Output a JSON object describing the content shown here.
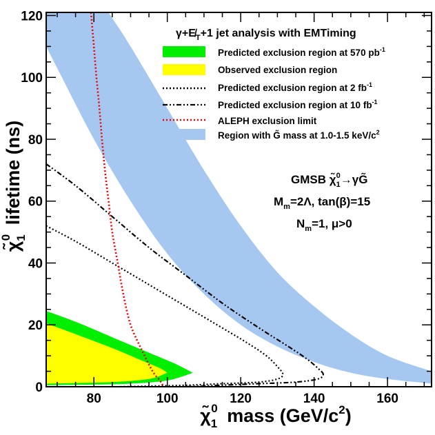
{
  "chart_data": {
    "type": "line",
    "title": "",
    "xlabel": "χ̃₁⁰ mass (GeV/c²)",
    "ylabel": "χ̃₁⁰ lifetime (ns)",
    "xlim": [
      67,
      172
    ],
    "ylim": [
      0,
      121
    ],
    "x_ticks": [
      80,
      100,
      120,
      140,
      160
    ],
    "y_ticks": [
      0,
      20,
      40,
      60,
      80,
      100,
      120
    ],
    "legend_title": "γ+E̸T+1 jet analysis with EMTiming",
    "legend_position": "top-right",
    "grid": false,
    "series": [
      {
        "name": "Predicted exclusion region at 570 pb⁻¹",
        "style": "filled-band",
        "color": "#00ee00",
        "upper": [
          [
            67,
            24.5
          ],
          [
            75,
            21
          ],
          [
            85,
            16
          ],
          [
            95,
            11
          ],
          [
            102,
            7.5
          ],
          [
            107,
            4.5
          ]
        ],
        "lower": [
          [
            107,
            4.5
          ],
          [
            100,
            2
          ],
          [
            90,
            1
          ],
          [
            80,
            0.7
          ],
          [
            67,
            0.5
          ]
        ]
      },
      {
        "name": "Observed exclusion region",
        "style": "filled-band",
        "color": "#ffff00",
        "upper": [
          [
            67,
            20.5
          ],
          [
            75,
            17
          ],
          [
            85,
            12.5
          ],
          [
            93,
            8.5
          ],
          [
            98,
            6
          ],
          [
            100,
            4.5
          ]
        ],
        "lower": [
          [
            100,
            4.5
          ],
          [
            95,
            2.5
          ],
          [
            85,
            1.5
          ],
          [
            75,
            1.2
          ],
          [
            67,
            1
          ]
        ]
      },
      {
        "name": "Predicted exclusion region at 2 fb⁻¹",
        "style": "dotted",
        "color": "#000000",
        "points": [
          [
            67,
            52
          ],
          [
            75,
            47
          ],
          [
            85,
            40
          ],
          [
            95,
            33
          ],
          [
            105,
            26
          ],
          [
            115,
            19
          ],
          [
            122,
            14
          ],
          [
            127,
            10
          ],
          [
            130,
            6.5
          ],
          [
            131.5,
            4
          ],
          [
            130,
            2.5
          ],
          [
            125,
            1.5
          ],
          [
            115,
            1
          ],
          [
            105,
            0.5
          ],
          [
            95,
            0.2
          ],
          [
            87,
            0
          ]
        ]
      },
      {
        "name": "Predicted exclusion region at 10 fb⁻¹",
        "style": "dash-dot-dot",
        "color": "#000000",
        "points": [
          [
            67,
            72
          ],
          [
            75,
            65
          ],
          [
            85,
            55
          ],
          [
            95,
            45
          ],
          [
            105,
            36
          ],
          [
            115,
            27
          ],
          [
            125,
            19
          ],
          [
            133,
            13
          ],
          [
            138,
            9
          ],
          [
            141,
            6
          ],
          [
            142.5,
            4
          ],
          [
            141,
            2.5
          ],
          [
            135,
            1.5
          ],
          [
            125,
            1
          ],
          [
            115,
            0.5
          ],
          [
            105,
            0
          ]
        ]
      },
      {
        "name": "ALEPH exclusion limit",
        "style": "dotted",
        "color": "#ee0000",
        "points": [
          [
            79.2,
            121
          ],
          [
            80,
            110
          ],
          [
            80.7,
            100
          ],
          [
            81.5,
            90
          ],
          [
            82.2,
            80
          ],
          [
            83,
            70
          ],
          [
            84,
            60
          ],
          [
            85,
            50
          ],
          [
            86.5,
            40
          ],
          [
            88,
            30
          ],
          [
            90,
            20
          ],
          [
            93,
            12
          ],
          [
            96,
            5
          ],
          [
            98,
            2
          ],
          [
            99,
            0
          ]
        ]
      },
      {
        "name": "Region with G̃ mass at 1.0-1.5 keV/c²",
        "style": "filled-band",
        "color": "#a6c8f0",
        "upper": [
          [
            84,
            121
          ],
          [
            90,
            110
          ],
          [
            100,
            90
          ],
          [
            110,
            70
          ],
          [
            120,
            52
          ],
          [
            130,
            37
          ],
          [
            140,
            26
          ],
          [
            150,
            17
          ],
          [
            160,
            10
          ],
          [
            172,
            5
          ]
        ],
        "lower": [
          [
            172,
            1
          ],
          [
            160,
            2.5
          ],
          [
            150,
            4.5
          ],
          [
            140,
            8
          ],
          [
            130,
            13
          ],
          [
            120,
            20
          ],
          [
            110,
            30
          ],
          [
            100,
            43
          ],
          [
            90,
            60
          ],
          [
            80,
            80
          ],
          [
            70,
            103
          ],
          [
            67,
            110
          ]
        ]
      }
    ],
    "annotations": [
      "GMSB χ̃₁⁰→γG̃",
      "Mm=2Λ, tan(β)=15",
      "Nm=1, μ>0"
    ]
  }
}
